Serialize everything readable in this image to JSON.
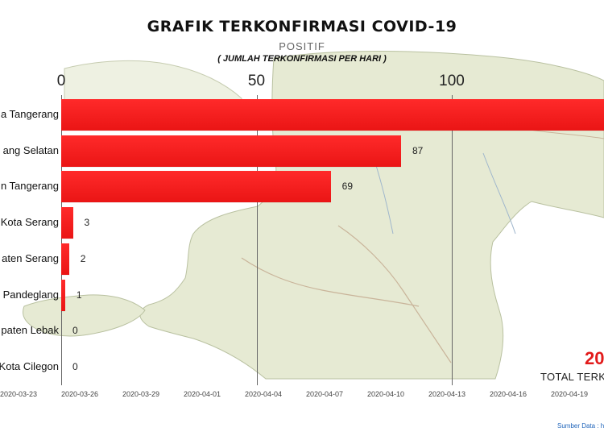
{
  "chart_data": {
    "type": "bar",
    "orientation": "horizontal",
    "title": "GRAFIK TERKONFIRMASI COVID-19",
    "subtitle": "POSITIF",
    "subtitle2": "( JUMLAH TERKONFIRMASI PER HARI )",
    "categories": [
      "a Tangerang",
      "ang Selatan",
      "n Tangerang",
      "Kota Serang",
      "aten Serang",
      "Pandeglang",
      "paten Lebak",
      "Kota Cilegon"
    ],
    "values": [
      140,
      87,
      69,
      3,
      2,
      1,
      0,
      0
    ],
    "value_labels": [
      "",
      "87",
      "69",
      "3",
      "2",
      "1",
      "0",
      "0"
    ],
    "x_ticks": [
      "0",
      "50",
      "100"
    ],
    "x_tick_values": [
      0,
      50,
      100
    ],
    "xlim": [
      0,
      140
    ],
    "grid": true,
    "bar_color": "#f01e1e",
    "timeline_dates": [
      "2020-03-23",
      "2020-03-26",
      "2020-03-29",
      "2020-04-01",
      "2020-04-04",
      "2020-04-07",
      "2020-04-10",
      "2020-04-13",
      "2020-04-16",
      "2020-04-19"
    ]
  },
  "total": {
    "value": "20",
    "label": "TOTAL TERK"
  },
  "source": "Sumber Data : https"
}
